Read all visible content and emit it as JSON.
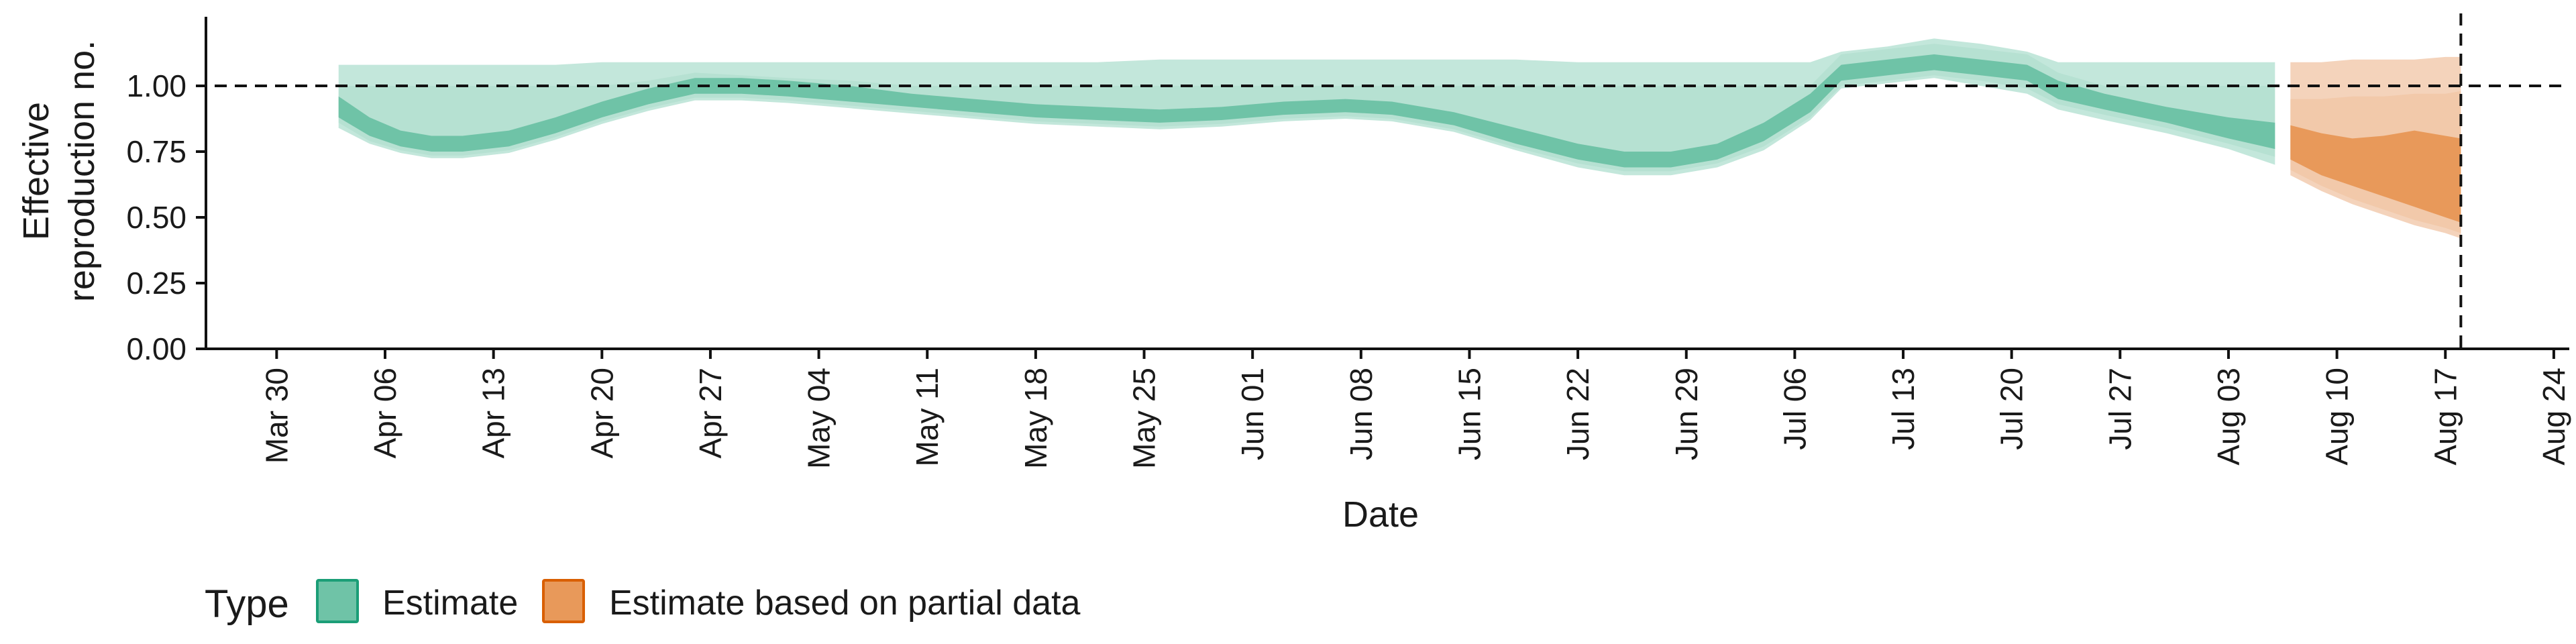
{
  "chart_data": {
    "type": "area",
    "xlabel": "Date",
    "ylabel_lines": [
      "Effective",
      "reproduction no."
    ],
    "ylim": [
      0,
      1.25
    ],
    "xlim": [
      "2020-03-26",
      "2020-08-25"
    ],
    "y_ticks": [
      0,
      0.25,
      0.5,
      0.75,
      1.0
    ],
    "y_tick_labels": [
      "0.00",
      "0.25",
      "0.50",
      "0.75",
      "1.00"
    ],
    "x_ticks": [
      "2020-03-30",
      "2020-04-06",
      "2020-04-13",
      "2020-04-20",
      "2020-04-27",
      "2020-05-04",
      "2020-05-11",
      "2020-05-18",
      "2020-05-25",
      "2020-06-01",
      "2020-06-08",
      "2020-06-15",
      "2020-06-22",
      "2020-06-29",
      "2020-07-06",
      "2020-07-13",
      "2020-07-20",
      "2020-07-27",
      "2020-08-03",
      "2020-08-10",
      "2020-08-17",
      "2020-08-24"
    ],
    "x_tick_labels": [
      "Mar 30",
      "Apr 06",
      "Apr 13",
      "Apr 20",
      "Apr 27",
      "May 04",
      "May 11",
      "May 18",
      "May 25",
      "Jun 01",
      "Jun 08",
      "Jun 15",
      "Jun 22",
      "Jun 29",
      "Jul 06",
      "Jul 13",
      "Jul 20",
      "Jul 27",
      "Aug 03",
      "Aug 10",
      "Aug 17",
      "Aug 24"
    ],
    "reference_line_y": 1.0,
    "reference_line_x": "2020-08-18",
    "legend": {
      "title": "Type",
      "position": "bottom",
      "entries": [
        "Estimate",
        "Estimate based on partial data"
      ]
    },
    "colors": {
      "estimate_fill": "#6fc3a7",
      "estimate_outer": "#c3e7db",
      "estimate_mid": "#9dd7c3",
      "estimate_border": "#1b9e77",
      "partial_fill": "#e8995a",
      "partial_outer": "#f4d3bb",
      "partial_mid": "#eeb68c",
      "partial_border": "#d95f02"
    },
    "series": [
      {
        "name": "Estimate",
        "dates": [
          "2020-04-03",
          "2020-04-05",
          "2020-04-07",
          "2020-04-09",
          "2020-04-11",
          "2020-04-14",
          "2020-04-17",
          "2020-04-20",
          "2020-04-23",
          "2020-04-26",
          "2020-04-29",
          "2020-05-02",
          "2020-05-06",
          "2020-05-10",
          "2020-05-14",
          "2020-05-18",
          "2020-05-22",
          "2020-05-26",
          "2020-05-30",
          "2020-06-03",
          "2020-06-07",
          "2020-06-10",
          "2020-06-14",
          "2020-06-18",
          "2020-06-22",
          "2020-06-25",
          "2020-06-28",
          "2020-07-01",
          "2020-07-04",
          "2020-07-07",
          "2020-07-09",
          "2020-07-12",
          "2020-07-15",
          "2020-07-18",
          "2020-07-21",
          "2020-07-23",
          "2020-07-26",
          "2020-07-30",
          "2020-08-03",
          "2020-08-06"
        ],
        "median": [
          0.92,
          0.85,
          0.8,
          0.78,
          0.78,
          0.8,
          0.85,
          0.91,
          0.96,
          1.0,
          1.0,
          0.99,
          0.97,
          0.94,
          0.92,
          0.9,
          0.89,
          0.88,
          0.89,
          0.91,
          0.92,
          0.91,
          0.87,
          0.81,
          0.75,
          0.72,
          0.72,
          0.75,
          0.83,
          0.94,
          1.05,
          1.07,
          1.09,
          1.07,
          1.05,
          0.98,
          0.94,
          0.89,
          0.84,
          0.81
        ],
        "inner_lower": [
          0.88,
          0.81,
          0.77,
          0.75,
          0.75,
          0.77,
          0.82,
          0.88,
          0.93,
          0.97,
          0.97,
          0.96,
          0.94,
          0.92,
          0.9,
          0.88,
          0.87,
          0.86,
          0.87,
          0.89,
          0.9,
          0.89,
          0.85,
          0.78,
          0.72,
          0.69,
          0.69,
          0.72,
          0.79,
          0.9,
          1.02,
          1.04,
          1.06,
          1.04,
          1.02,
          0.95,
          0.91,
          0.86,
          0.8,
          0.76
        ],
        "inner_upper": [
          0.96,
          0.88,
          0.83,
          0.81,
          0.81,
          0.83,
          0.88,
          0.94,
          0.99,
          1.03,
          1.03,
          1.02,
          1.0,
          0.97,
          0.95,
          0.93,
          0.92,
          0.91,
          0.92,
          0.94,
          0.95,
          0.94,
          0.9,
          0.84,
          0.78,
          0.75,
          0.75,
          0.78,
          0.86,
          0.97,
          1.08,
          1.1,
          1.12,
          1.1,
          1.08,
          1.02,
          0.97,
          0.92,
          0.88,
          0.86
        ],
        "mid_lower": [
          0.86,
          0.79,
          0.755,
          0.735,
          0.735,
          0.755,
          0.805,
          0.865,
          0.915,
          0.955,
          0.955,
          0.945,
          0.925,
          0.905,
          0.885,
          0.865,
          0.855,
          0.845,
          0.855,
          0.875,
          0.885,
          0.875,
          0.835,
          0.765,
          0.705,
          0.675,
          0.675,
          0.705,
          0.77,
          0.88,
          1.0,
          1.02,
          1.04,
          1.02,
          0.99,
          0.93,
          0.89,
          0.84,
          0.78,
          0.73
        ],
        "mid_upper": [
          1.0,
          1.0,
          1.0,
          1.0,
          1.0,
          1.0,
          1.0,
          1.0,
          1.02,
          1.05,
          1.04,
          1.03,
          1.02,
          1.0,
          1.0,
          1.0,
          1.0,
          1.0,
          1.0,
          1.0,
          1.0,
          1.0,
          1.0,
          1.0,
          1.0,
          1.0,
          1.0,
          1.0,
          1.0,
          1.0,
          1.12,
          1.14,
          1.16,
          1.14,
          1.12,
          1.05,
          1.0,
          1.0,
          1.0,
          1.0
        ],
        "outer_lower": [
          0.84,
          0.78,
          0.745,
          0.725,
          0.725,
          0.745,
          0.795,
          0.855,
          0.905,
          0.945,
          0.945,
          0.935,
          0.915,
          0.895,
          0.875,
          0.855,
          0.845,
          0.835,
          0.845,
          0.865,
          0.875,
          0.865,
          0.825,
          0.755,
          0.69,
          0.66,
          0.66,
          0.69,
          0.755,
          0.87,
          0.99,
          1.01,
          1.03,
          1.0,
          0.97,
          0.91,
          0.87,
          0.82,
          0.76,
          0.7
        ],
        "outer_upper": [
          1.08,
          1.08,
          1.08,
          1.08,
          1.08,
          1.08,
          1.08,
          1.09,
          1.09,
          1.09,
          1.09,
          1.09,
          1.09,
          1.09,
          1.09,
          1.09,
          1.09,
          1.1,
          1.1,
          1.1,
          1.1,
          1.1,
          1.1,
          1.1,
          1.09,
          1.09,
          1.09,
          1.09,
          1.09,
          1.09,
          1.13,
          1.15,
          1.18,
          1.16,
          1.13,
          1.09,
          1.09,
          1.09,
          1.09,
          1.09
        ]
      },
      {
        "name": "Estimate based on partial data",
        "dates": [
          "2020-08-07",
          "2020-08-09",
          "2020-08-11",
          "2020-08-13",
          "2020-08-15",
          "2020-08-17",
          "2020-08-18"
        ],
        "median": [
          0.78,
          0.73,
          0.7,
          0.68,
          0.66,
          0.63,
          0.62
        ],
        "inner_lower": [
          0.72,
          0.66,
          0.62,
          0.58,
          0.54,
          0.5,
          0.48
        ],
        "inner_upper": [
          0.85,
          0.82,
          0.8,
          0.81,
          0.83,
          0.81,
          0.8
        ],
        "mid_lower": [
          0.68,
          0.62,
          0.57,
          0.53,
          0.49,
          0.46,
          0.44
        ],
        "mid_upper": [
          0.95,
          0.95,
          0.96,
          0.96,
          0.97,
          0.97,
          0.98
        ],
        "outer_lower": [
          0.66,
          0.6,
          0.55,
          0.51,
          0.47,
          0.44,
          0.42
        ],
        "outer_upper": [
          1.09,
          1.09,
          1.1,
          1.1,
          1.1,
          1.11,
          1.11
        ]
      }
    ]
  }
}
